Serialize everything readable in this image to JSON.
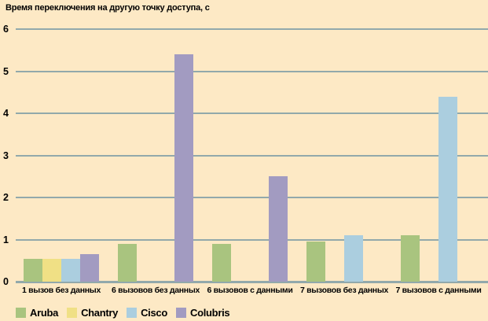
{
  "colors": {
    "background": "#fde9c5",
    "gridline": "#92a9ab",
    "axis_line": "#92a9ab",
    "text": "#000000"
  },
  "chart_data": {
    "type": "bar",
    "title": "Время переключения на другую точку доступа, с",
    "xlabel": "",
    "ylabel": "",
    "ylim": [
      0,
      6
    ],
    "yticks": [
      0,
      1,
      2,
      3,
      4,
      5,
      6
    ],
    "grid": true,
    "legend_position": "bottom-left",
    "categories": [
      "1 вызов без данных",
      "6 вызовов без данных",
      "6 вызовов с данными",
      "7 вызовов без данных",
      "7 вызовов с данными"
    ],
    "series": [
      {
        "name": "Aruba",
        "color": "#a9c47f",
        "values": [
          0.55,
          0.9,
          0.9,
          0.95,
          1.1
        ]
      },
      {
        "name": "Chantry",
        "color": "#f0e085",
        "values": [
          0.55,
          null,
          null,
          null,
          null
        ]
      },
      {
        "name": "Cisco",
        "color": "#abcedf",
        "values": [
          0.55,
          null,
          null,
          1.1,
          4.4
        ]
      },
      {
        "name": "Colubris",
        "color": "#a29bc1",
        "values": [
          0.65,
          5.4,
          2.5,
          null,
          null
        ]
      }
    ]
  }
}
